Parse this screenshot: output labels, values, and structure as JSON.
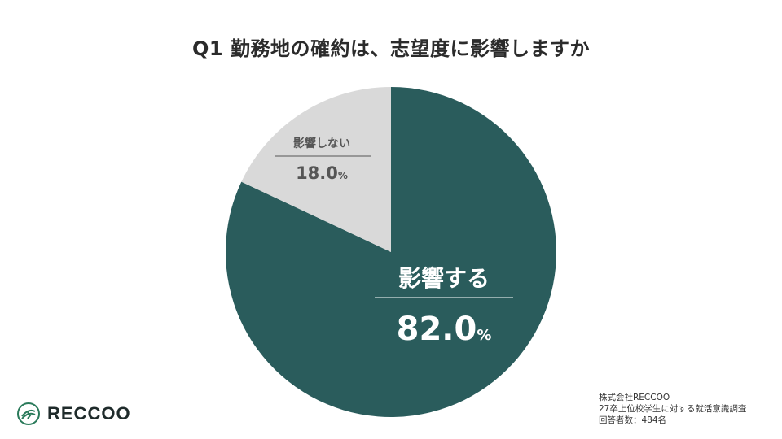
{
  "title": "Q1 勤務地の確約は、志望度に影響しますか",
  "chart_data": {
    "type": "pie",
    "title": "Q1 勤務地の確約は、志望度に影響しますか",
    "slices": [
      {
        "label": "影響する",
        "value": 82.0,
        "display": "82.0",
        "unit": "%",
        "color": "#2a5c5c"
      },
      {
        "label": "影響しない",
        "value": 18.0,
        "display": "18.0",
        "unit": "%",
        "color": "#d9d9d9"
      }
    ],
    "start_angle_deg": 0,
    "direction": "clockwise"
  },
  "colors": {
    "primary": "#2a5c5c",
    "secondary": "#d9d9d9",
    "logo": "#2a7a5a"
  },
  "logo": {
    "text": "RECCOO",
    "icon": "reccoo-logo-icon"
  },
  "source": {
    "line1": "株式会社RECCOO",
    "line2": "27卒上位校学生に対する就活意識調査",
    "line3": "回答者数：484名"
  }
}
